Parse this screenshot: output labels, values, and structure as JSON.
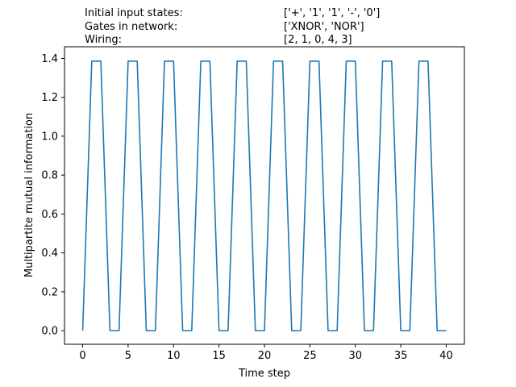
{
  "header": {
    "rows": [
      {
        "label": "Initial input states:",
        "value": "['+', '1', '1', '-', '0']"
      },
      {
        "label": "Gates in network:",
        "value": "['XNOR', 'NOR']"
      },
      {
        "label": "Wiring:",
        "value": "[2, 1, 0, 4, 3]"
      }
    ]
  },
  "chart_data": {
    "type": "line",
    "title": "",
    "xlabel": "Time step",
    "ylabel": "Multipartite mutual information",
    "xlim": [
      -2,
      42
    ],
    "ylim": [
      -0.07,
      1.46
    ],
    "xticks": [
      0,
      5,
      10,
      15,
      20,
      25,
      30,
      35,
      40
    ],
    "yticks": [
      0.0,
      0.2,
      0.4,
      0.6,
      0.8,
      1.0,
      1.2,
      1.4
    ],
    "ytick_labels": [
      "0.0",
      "0.2",
      "0.4",
      "0.6",
      "0.8",
      "1.0",
      "1.2",
      "1.4"
    ],
    "grid": false,
    "line_color": "#1f77b4",
    "series": [
      {
        "x": [
          0,
          1,
          2,
          3,
          4,
          5,
          6,
          7,
          8,
          9,
          10,
          11,
          12,
          13,
          14,
          15,
          16,
          17,
          18,
          19,
          20,
          21,
          22,
          23,
          24,
          25,
          26,
          27,
          28,
          29,
          30,
          31,
          32,
          33,
          34,
          35,
          36,
          37,
          38,
          39,
          40
        ],
        "values": [
          0,
          1.386,
          1.386,
          0,
          0,
          1.386,
          1.386,
          0,
          0,
          1.386,
          1.386,
          0,
          0,
          1.386,
          1.386,
          0,
          0,
          1.386,
          1.386,
          0,
          0,
          1.386,
          1.386,
          0,
          0,
          1.386,
          1.386,
          0,
          0,
          1.386,
          1.386,
          0,
          0,
          1.386,
          1.386,
          0,
          0,
          1.386,
          1.386,
          0,
          0
        ]
      }
    ]
  }
}
